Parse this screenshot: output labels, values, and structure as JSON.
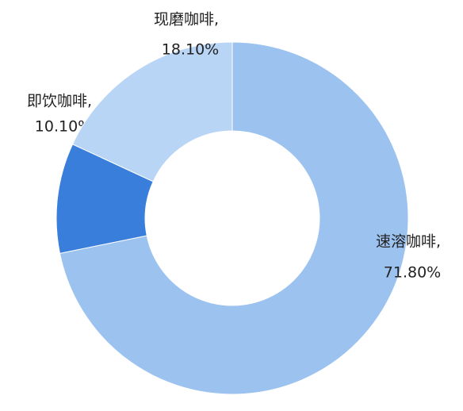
{
  "chart_data": {
    "type": "donut",
    "categories": [
      "速溶咖啡,",
      "即饮咖啡,",
      "现磨咖啡,"
    ],
    "values": [
      71.8,
      10.1,
      18.1
    ],
    "value_labels": [
      "71.80%",
      "10.10%",
      "18.10%"
    ],
    "colors": [
      "#9cc2f0",
      "#3a7edb",
      "#b9d5f6"
    ]
  }
}
